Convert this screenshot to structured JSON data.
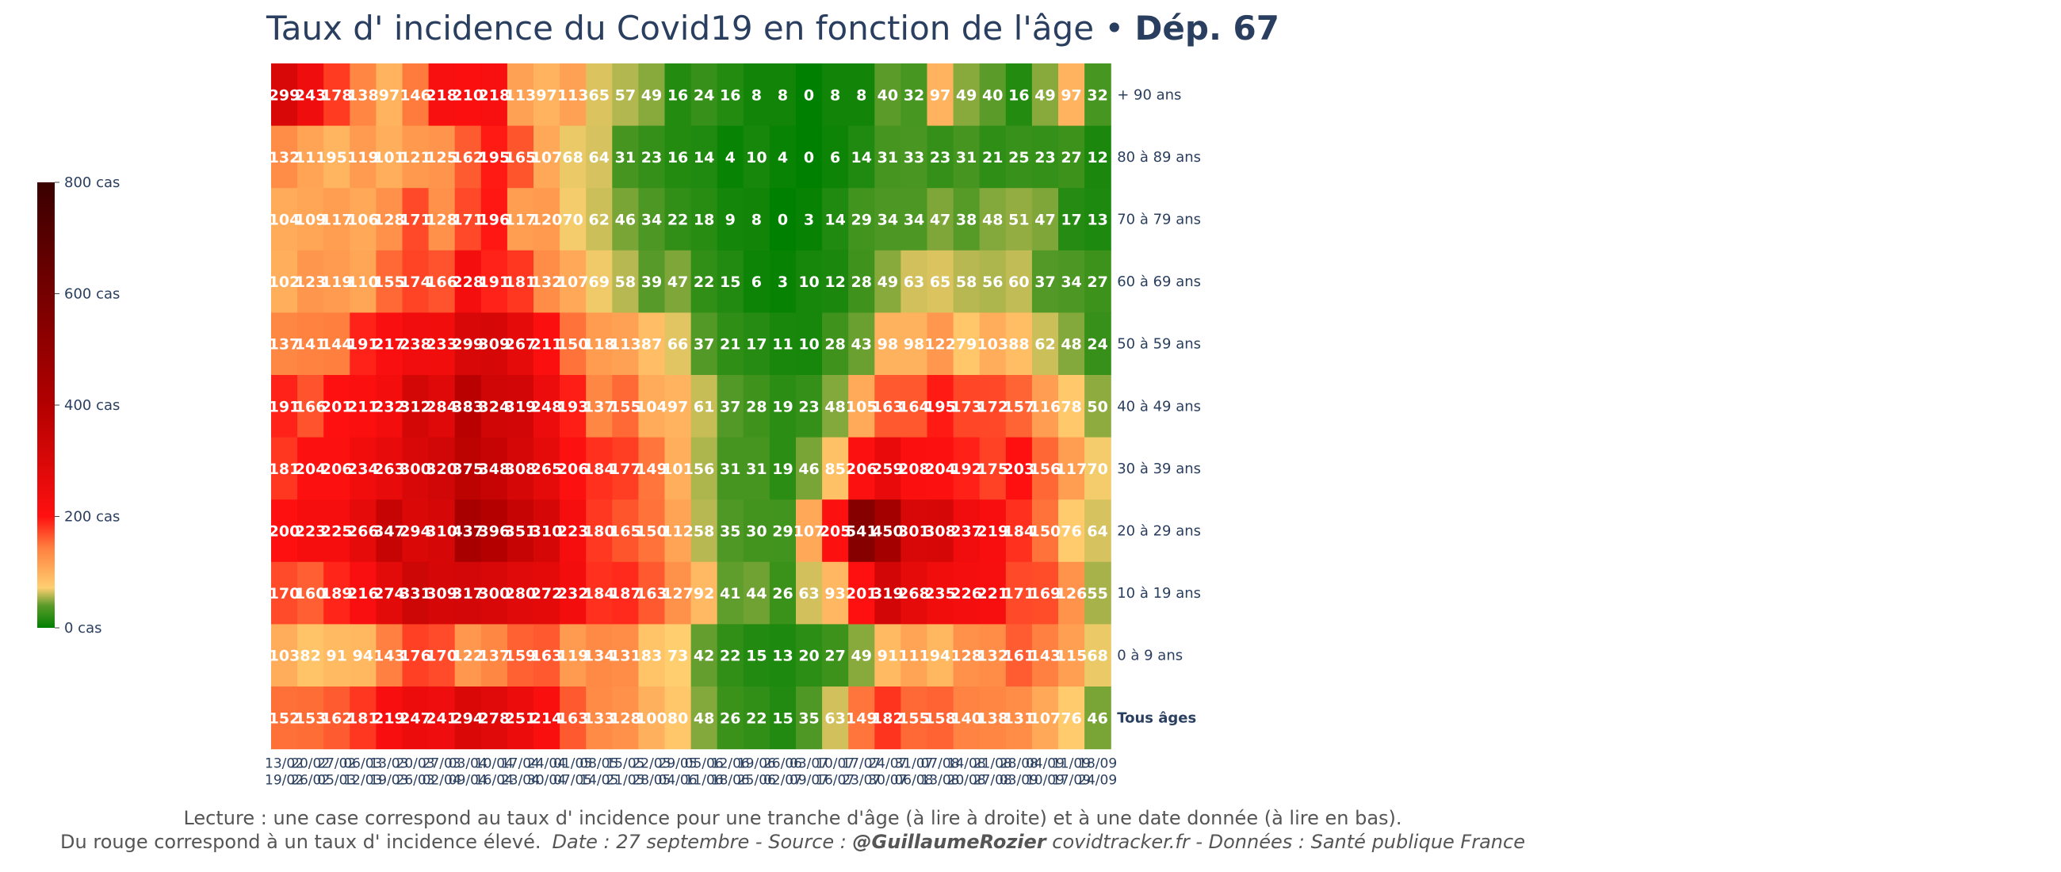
{
  "chart_data": {
    "type": "heatmap",
    "title": "Taux d' incidence du Covid19 en fonction de l'âge",
    "title_separator": " • ",
    "title_bold": "Dép. 67",
    "rows": [
      "+ 90 ans",
      "80 à 89 ans",
      "70 à 79 ans",
      "60 à 69 ans",
      "50 à 59 ans",
      "40 à 49 ans",
      "30 à 39 ans",
      "20 à 29 ans",
      "10 à 19 ans",
      "0 à 9 ans",
      "Tous âges"
    ],
    "columns": [
      {
        "start": "13/02",
        "end": "19/02"
      },
      {
        "start": "20/02",
        "end": "26/02"
      },
      {
        "start": "27/02",
        "end": "05/03"
      },
      {
        "start": "06/03",
        "end": "12/03"
      },
      {
        "start": "13/03",
        "end": "19/03"
      },
      {
        "start": "20/03",
        "end": "26/03"
      },
      {
        "start": "27/03",
        "end": "02/04"
      },
      {
        "start": "03/04",
        "end": "09/04"
      },
      {
        "start": "10/04",
        "end": "16/04"
      },
      {
        "start": "17/04",
        "end": "23/04"
      },
      {
        "start": "24/04",
        "end": "30/04"
      },
      {
        "start": "01/05",
        "end": "07/05"
      },
      {
        "start": "08/05",
        "end": "14/05"
      },
      {
        "start": "15/05",
        "end": "21/05"
      },
      {
        "start": "22/05",
        "end": "28/05"
      },
      {
        "start": "29/05",
        "end": "04/06"
      },
      {
        "start": "05/06",
        "end": "11/06"
      },
      {
        "start": "12/06",
        "end": "18/06"
      },
      {
        "start": "19/06",
        "end": "25/06"
      },
      {
        "start": "26/06",
        "end": "02/07"
      },
      {
        "start": "03/07",
        "end": "09/07"
      },
      {
        "start": "10/07",
        "end": "16/07"
      },
      {
        "start": "17/07",
        "end": "23/07"
      },
      {
        "start": "24/07",
        "end": "30/07"
      },
      {
        "start": "31/07",
        "end": "06/08"
      },
      {
        "start": "07/08",
        "end": "13/08"
      },
      {
        "start": "14/08",
        "end": "20/08"
      },
      {
        "start": "21/08",
        "end": "27/08"
      },
      {
        "start": "28/08",
        "end": "03/09"
      },
      {
        "start": "04/09",
        "end": "10/09"
      },
      {
        "start": "11/09",
        "end": "17/09"
      },
      {
        "start": "18/09",
        "end": "24/09"
      }
    ],
    "values": [
      [
        299,
        243,
        178,
        138,
        97,
        146,
        218,
        210,
        218,
        113,
        97,
        113,
        65,
        57,
        49,
        16,
        24,
        16,
        8,
        8,
        0,
        8,
        8,
        40,
        32,
        97,
        49,
        40,
        16,
        49,
        97,
        32
      ],
      [
        132,
        111,
        95,
        119,
        101,
        121,
        125,
        162,
        195,
        165,
        107,
        68,
        64,
        31,
        23,
        16,
        14,
        4,
        10,
        4,
        0,
        6,
        14,
        31,
        33,
        23,
        31,
        21,
        25,
        23,
        27,
        12
      ],
      [
        104,
        109,
        117,
        106,
        128,
        171,
        128,
        171,
        196,
        117,
        120,
        70,
        62,
        46,
        34,
        22,
        18,
        9,
        8,
        0,
        3,
        14,
        29,
        34,
        34,
        47,
        38,
        48,
        51,
        47,
        17,
        13
      ],
      [
        102,
        123,
        119,
        110,
        155,
        174,
        166,
        228,
        191,
        181,
        132,
        107,
        69,
        58,
        39,
        47,
        22,
        15,
        6,
        3,
        10,
        12,
        28,
        49,
        63,
        65,
        58,
        56,
        60,
        37,
        34,
        27
      ],
      [
        137,
        141,
        144,
        191,
        217,
        238,
        233,
        299,
        309,
        267,
        211,
        150,
        118,
        113,
        87,
        66,
        37,
        21,
        17,
        11,
        10,
        28,
        43,
        98,
        98,
        122,
        79,
        103,
        88,
        62,
        48,
        24
      ],
      [
        191,
        166,
        201,
        211,
        232,
        312,
        284,
        383,
        324,
        319,
        248,
        193,
        137,
        155,
        104,
        97,
        61,
        37,
        28,
        19,
        23,
        48,
        105,
        163,
        164,
        195,
        173,
        172,
        157,
        116,
        78,
        50
      ],
      [
        181,
        204,
        206,
        234,
        263,
        300,
        320,
        375,
        348,
        308,
        265,
        206,
        184,
        177,
        149,
        101,
        56,
        31,
        31,
        19,
        46,
        85,
        206,
        259,
        208,
        204,
        192,
        175,
        203,
        156,
        117,
        70
      ],
      [
        200,
        223,
        225,
        266,
        347,
        294,
        310,
        437,
        396,
        351,
        310,
        223,
        180,
        165,
        150,
        112,
        58,
        35,
        30,
        29,
        107,
        205,
        541,
        450,
        301,
        308,
        237,
        219,
        184,
        150,
        76,
        64
      ],
      [
        170,
        160,
        189,
        216,
        274,
        331,
        309,
        317,
        300,
        280,
        272,
        232,
        184,
        187,
        163,
        127,
        92,
        41,
        44,
        26,
        63,
        93,
        201,
        319,
        268,
        235,
        226,
        221,
        171,
        169,
        126,
        55
      ],
      [
        103,
        82,
        91,
        94,
        143,
        176,
        170,
        122,
        137,
        159,
        163,
        119,
        134,
        131,
        83,
        73,
        42,
        22,
        15,
        13,
        20,
        27,
        49,
        91,
        111,
        94,
        128,
        132,
        161,
        143,
        115,
        68
      ],
      [
        152,
        153,
        162,
        181,
        219,
        247,
        241,
        294,
        278,
        251,
        214,
        163,
        133,
        128,
        100,
        80,
        48,
        26,
        22,
        15,
        35,
        63,
        149,
        182,
        155,
        158,
        140,
        138,
        131,
        107,
        76,
        46
      ]
    ],
    "zlim": [
      0,
      800
    ],
    "colorbar": {
      "ticks": [
        0,
        200,
        400,
        600,
        800
      ],
      "tick_labels": [
        "0 cas",
        "200 cas",
        "400 cas",
        "600 cas",
        "800 cas"
      ],
      "colorscale": [
        [
          0.0,
          "#008000"
        ],
        [
          0.05,
          "#5a9b2a"
        ],
        [
          0.09,
          "#ffcf6f"
        ],
        [
          0.18,
          "#ff7f3f"
        ],
        [
          0.25,
          "#ff1010"
        ],
        [
          0.5,
          "#b30000"
        ],
        [
          0.75,
          "#750000"
        ],
        [
          1.0,
          "#3a0000"
        ]
      ]
    },
    "caption": {
      "line1": "Lecture : une case correspond au taux d' incidence pour une tranche d'âge (à lire à droite) et à une date donnée (à lire en bas).",
      "line2_plain": "Du rouge correspond à un taux d' incidence élevé.",
      "line2_date": "Date : 27 septembre - Source : ",
      "line2_author": "@GuillaumeRozier",
      "line2_rest": " covidtracker.fr - Données : Santé publique France"
    }
  }
}
